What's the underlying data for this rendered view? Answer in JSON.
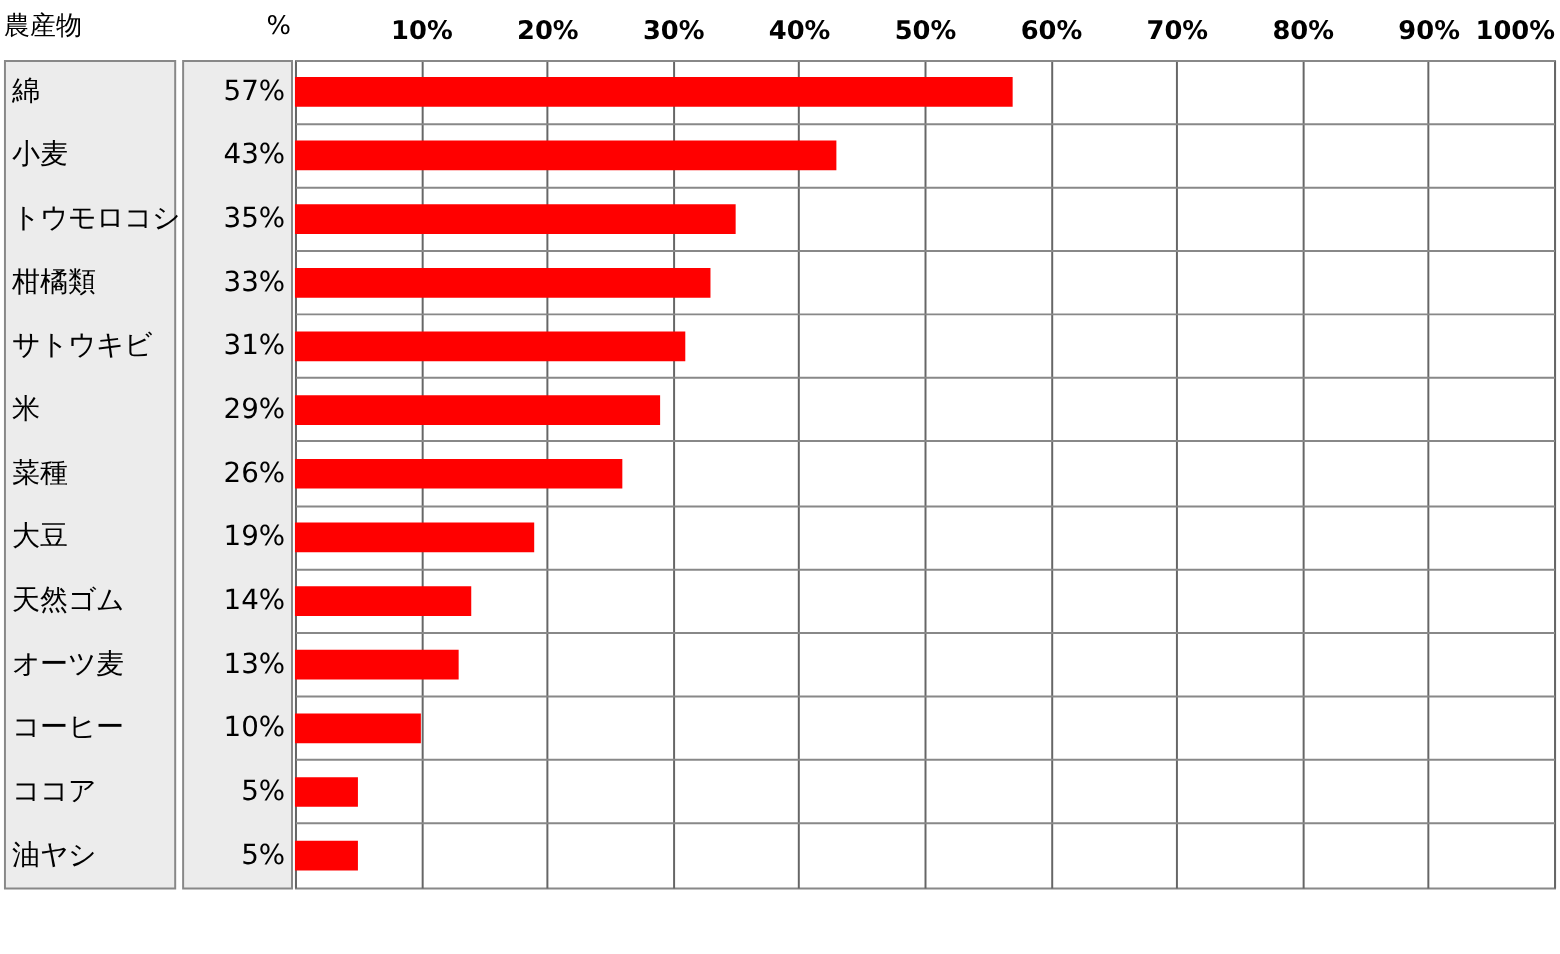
{
  "chart_data": {
    "type": "bar",
    "orientation": "horizontal",
    "ylabel": "農産物",
    "xlabel": "%",
    "categories": [
      "綿",
      "小麦",
      "トウモロコシ",
      "柑橘類",
      "サトウキビ",
      "米",
      "菜種",
      "大豆",
      "天然ゴム",
      "オーツ麦",
      "コーヒー",
      "ココア",
      "油ヤシ"
    ],
    "values": [
      57,
      43,
      35,
      33,
      31,
      29,
      26,
      19,
      14,
      13,
      10,
      5,
      5
    ],
    "value_labels": [
      "57%",
      "43%",
      "35%",
      "33%",
      "31%",
      "29%",
      "26%",
      "19%",
      "14%",
      "13%",
      "10%",
      "5%",
      "5%"
    ],
    "color": "#ff0000",
    "xlim": [
      0,
      100
    ],
    "xticks": [
      {
        "value": 0,
        "label": null
      },
      {
        "value": 10,
        "label": "10%"
      },
      {
        "value": 20,
        "label": "20%"
      },
      {
        "value": 30,
        "label": "30%"
      },
      {
        "value": 40,
        "label": "40%"
      },
      {
        "value": 50,
        "label": "50%"
      },
      {
        "value": 60,
        "label": "60%"
      },
      {
        "value": 70,
        "label": "70%"
      },
      {
        "value": 80,
        "label": "80%"
      },
      {
        "value": 90,
        "label": "90%"
      },
      {
        "value": 100,
        "label": "100%"
      }
    ],
    "grid": true
  }
}
